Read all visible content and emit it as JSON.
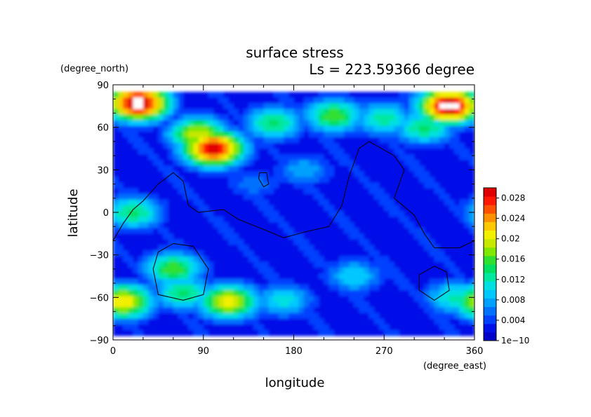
{
  "chart_data": {
    "type": "heatmap",
    "title": "surface stress",
    "subtitle": "Ls = 223.59366 degree",
    "xlabel": "longitude",
    "ylabel": "latitude",
    "xunit": "(degree_east)",
    "yunit": "(degree_north)",
    "xlim": [
      0,
      360
    ],
    "ylim": [
      -90,
      90
    ],
    "x_ticks": [
      "0",
      "90",
      "180",
      "270",
      "360"
    ],
    "y_ticks": [
      "90",
      "60",
      "30",
      "0",
      "−30",
      "−60",
      "−90"
    ],
    "colorbar": {
      "labels": [
        "1e−10",
        "0.004",
        "0.008",
        "0.012",
        "0.016",
        "0.02",
        "0.024",
        "0.028"
      ],
      "range": [
        0,
        0.03
      ],
      "colors": [
        "#0000c8",
        "#0010e8",
        "#0040ff",
        "#0070ff",
        "#00a0ff",
        "#00c8ff",
        "#00e0e0",
        "#00e8a0",
        "#00e060",
        "#30e030",
        "#80e800",
        "#c8e800",
        "#f0f000",
        "#ffc800",
        "#ff9000",
        "#ff5000",
        "#ff1800",
        "#e00000"
      ]
    },
    "lat_range_of_data": [
      -85,
      85
    ],
    "hotspots": [
      {
        "lon": 25,
        "lat": 77,
        "value": 0.032
      },
      {
        "lon": 335,
        "lat": 75,
        "value": 0.032
      },
      {
        "lon": 100,
        "lat": 45,
        "value": 0.03
      },
      {
        "lon": 85,
        "lat": 55,
        "value": 0.02
      },
      {
        "lon": 160,
        "lat": 63,
        "value": 0.014
      },
      {
        "lon": 220,
        "lat": 68,
        "value": 0.016
      },
      {
        "lon": 270,
        "lat": 66,
        "value": 0.013
      },
      {
        "lon": 310,
        "lat": 60,
        "value": 0.014
      },
      {
        "lon": 20,
        "lat": 0,
        "value": 0.014
      },
      {
        "lon": 60,
        "lat": -40,
        "value": 0.016
      },
      {
        "lon": 70,
        "lat": -57,
        "value": 0.014
      },
      {
        "lon": 10,
        "lat": -63,
        "value": 0.022
      },
      {
        "lon": 115,
        "lat": -63,
        "value": 0.021
      },
      {
        "lon": 170,
        "lat": -62,
        "value": 0.011
      },
      {
        "lon": 240,
        "lat": -45,
        "value": 0.01
      },
      {
        "lon": 340,
        "lat": -60,
        "value": 0.012
      },
      {
        "lon": 190,
        "lat": 30,
        "value": 0.008
      },
      {
        "lon": 140,
        "lat": 20,
        "value": 0.006
      }
    ]
  }
}
